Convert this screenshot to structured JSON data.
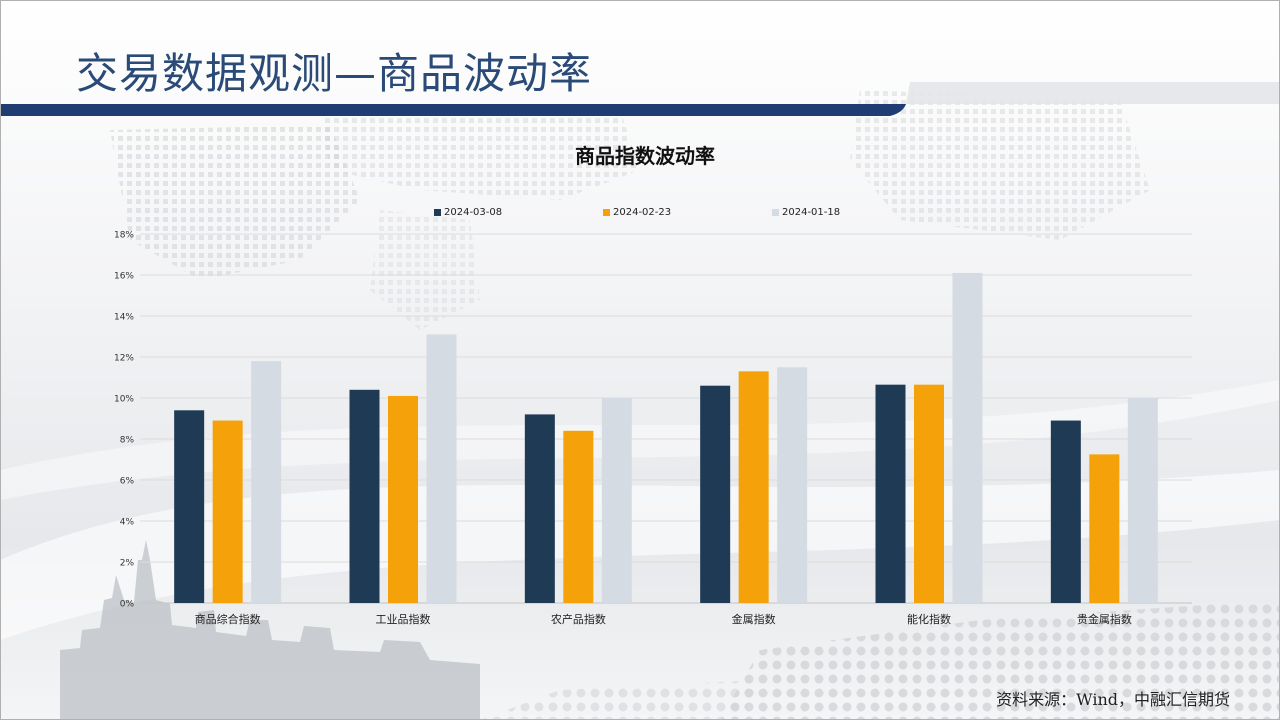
{
  "slide_title": "交易数据观测—商品波动率",
  "source_note": "资料来源：Wind，中融汇信期货",
  "colors": {
    "header_bar": "#1f3c73",
    "title_text": "#2a4a77",
    "series_1": "#1f3a55",
    "series_2": "#f5a20a",
    "series_3": "#d5dbe3"
  },
  "chart_data": {
    "type": "bar",
    "title": "商品指数波动率",
    "xlabel": "",
    "ylabel": "",
    "ylim": [
      0,
      18
    ],
    "yticks": [
      "0%",
      "2%",
      "4%",
      "6%",
      "8%",
      "10%",
      "12%",
      "14%",
      "16%",
      "18%"
    ],
    "grid": true,
    "legend_position": "top",
    "categories": [
      "商品综合指数",
      "工业品指数",
      "农产品指数",
      "金属指数",
      "能化指数",
      "贵金属指数"
    ],
    "series": [
      {
        "name": "2024-03-08",
        "color": "#1f3a55",
        "values": [
          9.4,
          10.4,
          9.2,
          10.6,
          10.65,
          8.9
        ]
      },
      {
        "name": "2024-02-23",
        "color": "#f5a20a",
        "values": [
          8.9,
          10.1,
          8.4,
          11.3,
          10.65,
          7.25
        ]
      },
      {
        "name": "2024-01-18",
        "color": "#d5dbe3",
        "values": [
          11.8,
          13.1,
          10.0,
          11.5,
          16.1,
          10.0
        ]
      }
    ]
  }
}
